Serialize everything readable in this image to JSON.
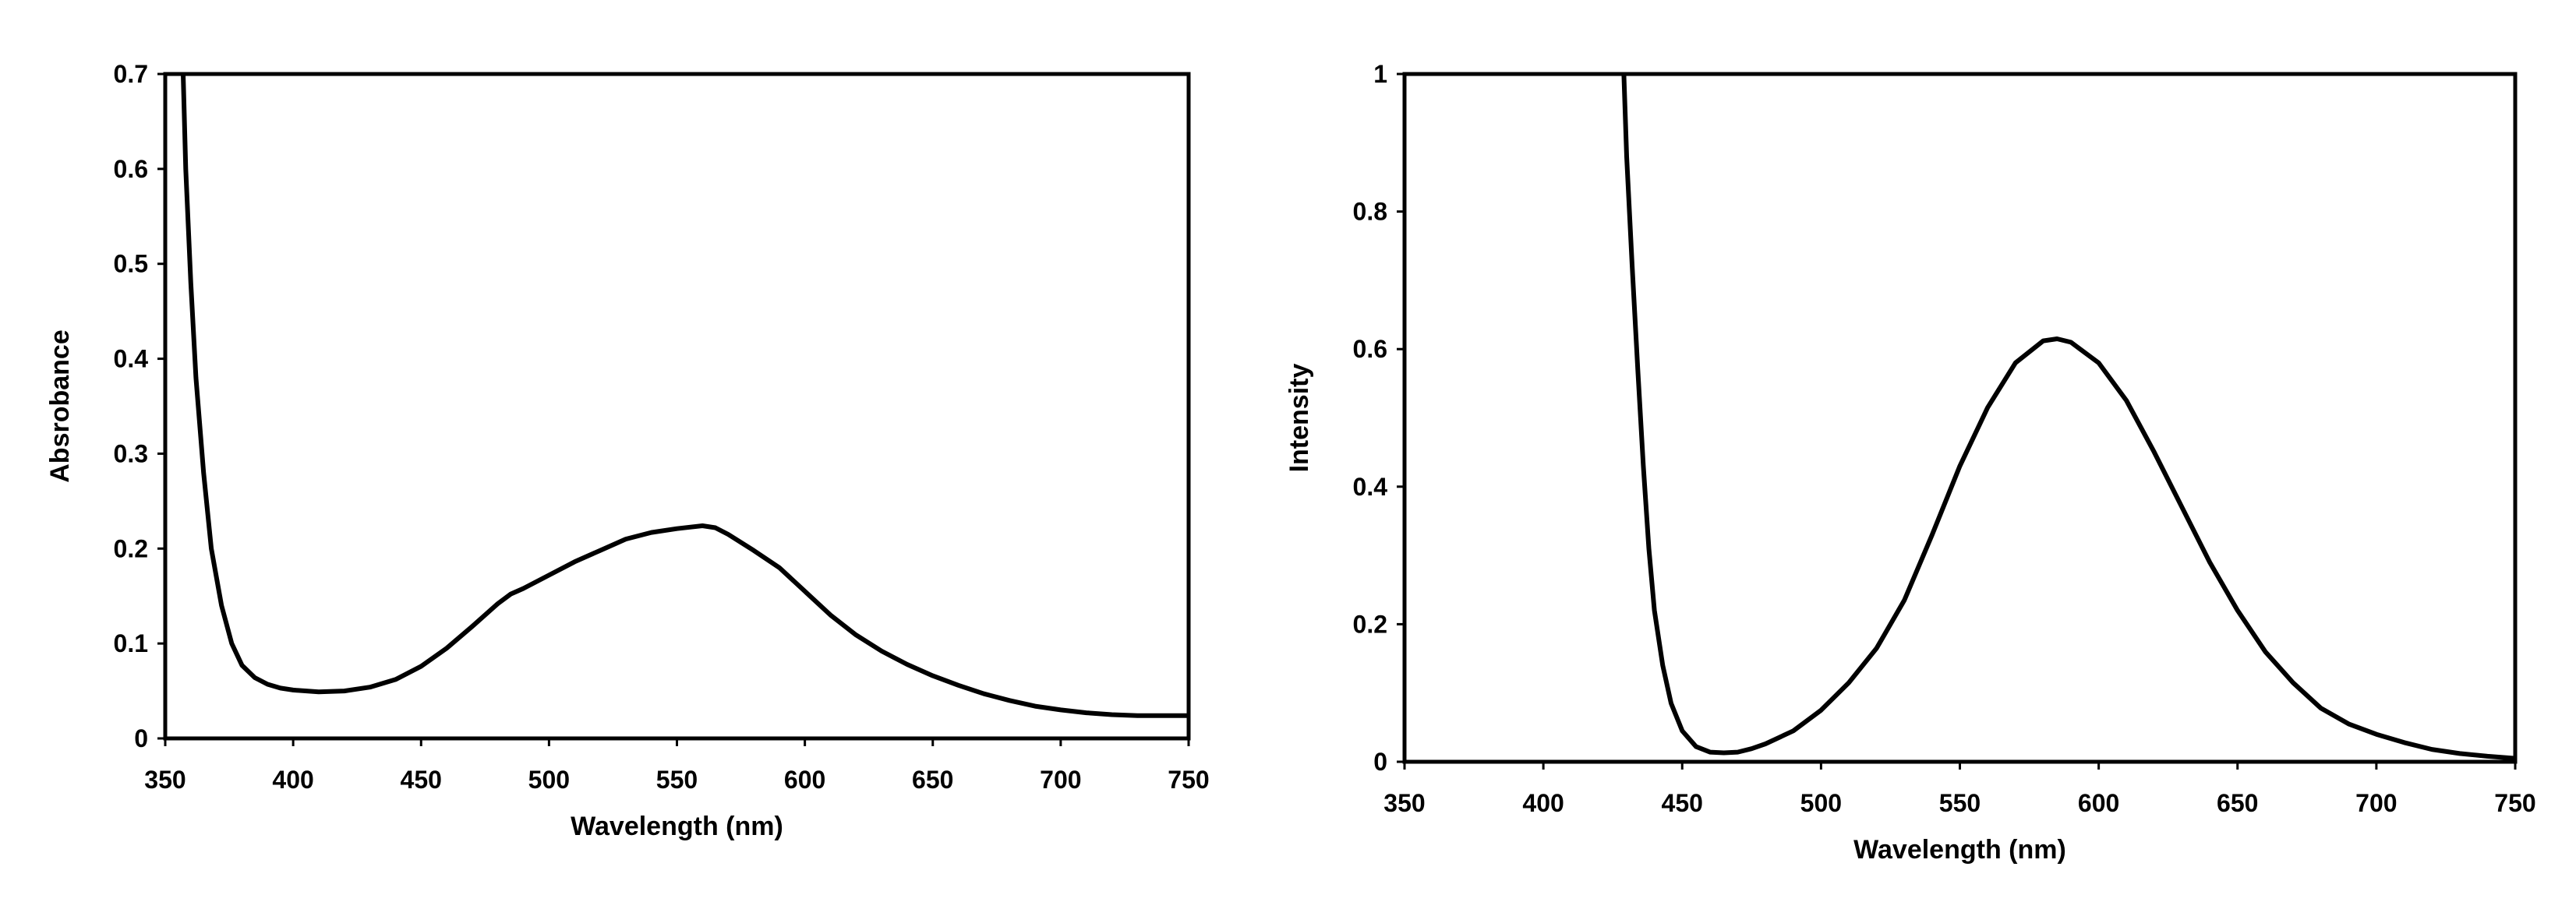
{
  "chart_data": [
    {
      "type": "line",
      "title": "",
      "xlabel": "Wavelength (nm)",
      "ylabel": "Absrobance",
      "xlim": [
        350,
        750
      ],
      "ylim": [
        0,
        0.7
      ],
      "xticks": [
        "350",
        "400",
        "450",
        "500",
        "550",
        "600",
        "650",
        "700",
        "750"
      ],
      "yticks": [
        "0",
        "0.1",
        "0.2",
        "0.3",
        "0.4",
        "0.5",
        "0.6",
        "0.7"
      ],
      "grid": false,
      "series": [
        {
          "x": [
            357,
            358,
            360,
            362,
            365,
            368,
            372,
            376,
            380,
            385,
            390,
            395,
            400,
            410,
            420,
            430,
            440,
            450,
            460,
            470,
            480,
            485,
            490,
            500,
            510,
            520,
            530,
            540,
            550,
            560,
            565,
            570,
            580,
            590,
            600,
            610,
            620,
            630,
            640,
            650,
            660,
            670,
            680,
            690,
            700,
            710,
            720,
            730,
            740,
            750
          ],
          "y": [
            0.7,
            0.6,
            0.48,
            0.38,
            0.28,
            0.2,
            0.14,
            0.1,
            0.077,
            0.064,
            0.057,
            0.053,
            0.051,
            0.049,
            0.05,
            0.054,
            0.062,
            0.076,
            0.095,
            0.118,
            0.142,
            0.152,
            0.158,
            0.172,
            0.186,
            0.198,
            0.21,
            0.217,
            0.221,
            0.224,
            0.222,
            0.215,
            0.198,
            0.18,
            0.155,
            0.13,
            0.109,
            0.092,
            0.078,
            0.066,
            0.056,
            0.047,
            0.04,
            0.034,
            0.03,
            0.027,
            0.025,
            0.024,
            0.024,
            0.024
          ]
        }
      ]
    },
    {
      "type": "line",
      "title": "",
      "xlabel": "Wavelength (nm)",
      "ylabel": "Intensity",
      "xlim": [
        350,
        750
      ],
      "ylim": [
        0,
        1
      ],
      "xticks": [
        "350",
        "400",
        "450",
        "500",
        "550",
        "600",
        "650",
        "700",
        "750"
      ],
      "yticks": [
        "0",
        "0.2",
        "0.4",
        "0.6",
        "0.8",
        "1"
      ],
      "grid": false,
      "series": [
        {
          "x": [
            429,
            430,
            432,
            434,
            436,
            438,
            440,
            443,
            446,
            450,
            455,
            460,
            465,
            470,
            475,
            480,
            490,
            500,
            510,
            520,
            530,
            540,
            550,
            560,
            570,
            580,
            585,
            590,
            600,
            610,
            620,
            630,
            640,
            650,
            660,
            670,
            680,
            690,
            700,
            710,
            720,
            730,
            740,
            750
          ],
          "y": [
            1.0,
            0.88,
            0.72,
            0.57,
            0.43,
            0.31,
            0.22,
            0.14,
            0.085,
            0.045,
            0.022,
            0.014,
            0.013,
            0.014,
            0.019,
            0.026,
            0.045,
            0.075,
            0.115,
            0.165,
            0.235,
            0.33,
            0.43,
            0.515,
            0.58,
            0.612,
            0.615,
            0.61,
            0.58,
            0.525,
            0.45,
            0.37,
            0.29,
            0.22,
            0.16,
            0.115,
            0.078,
            0.055,
            0.04,
            0.028,
            0.018,
            0.012,
            0.008,
            0.005
          ]
        }
      ]
    }
  ]
}
